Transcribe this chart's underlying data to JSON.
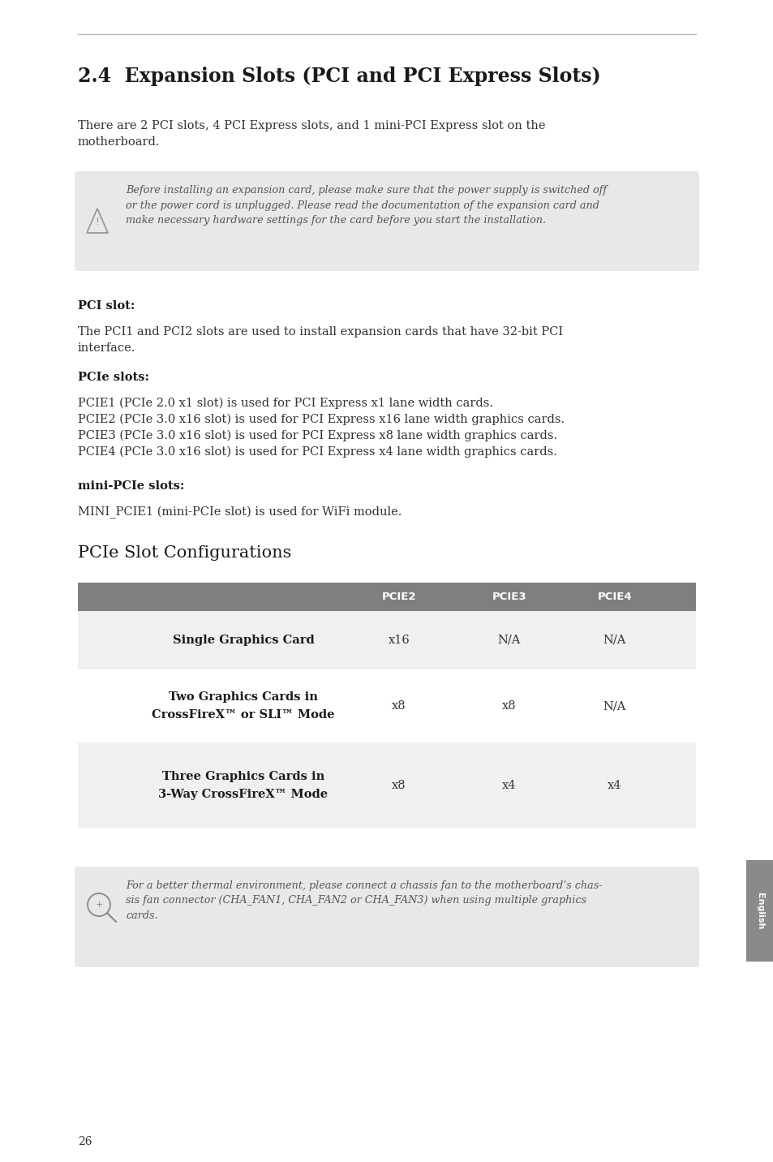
{
  "page_bg": "#ffffff",
  "top_line_color": "#bbbbbb",
  "title": "2.4  Expansion Slots (PCI and PCI Express Slots)",
  "title_fontsize": 17,
  "title_color": "#1a1a1a",
  "intro_text": "There are 2 PCI slots, 4 PCI Express slots, and 1 mini-PCI Express slot on the\nmotherboard.",
  "intro_fontsize": 10.5,
  "warning_box_color": "#e8e8e8",
  "warning_text": "Before installing an expansion card, please make sure that the power supply is switched off\nor the power cord is unplugged. Please read the documentation of the expansion card and\nmake necessary hardware settings for the card before you start the installation.",
  "warning_fontsize": 9.2,
  "pci_slot_label": "PCI slot:",
  "pci_slot_text": "The PCI1 and PCI2 slots are used to install expansion cards that have 32-bit PCI\ninterface.",
  "pcie_slots_label": "PCIe slots:",
  "pcie_lines": [
    "PCIE1 (PCIe 2.0 x1 slot) is used for PCI Express x1 lane width cards.",
    "PCIE2 (PCIe 3.0 x16 slot) is used for PCI Express x16 lane width graphics cards.",
    "PCIE3 (PCIe 3.0 x16 slot) is used for PCI Express x8 lane width graphics cards.",
    "PCIE4 (PCIe 3.0 x16 slot) is used for PCI Express x4 lane width graphics cards."
  ],
  "mini_pcie_label": "mini-PCIe slots:",
  "mini_pcie_text": "MINI_PCIE1 (mini-PCIe slot) is used for WiFi module.",
  "section2_title": "PCIe Slot Configurations",
  "section2_title_fontsize": 15,
  "table_header_bg": "#7f7f7f",
  "table_header_text_color": "#ffffff",
  "table_row1_bg": "#f0f0f0",
  "table_row2_bg": "#ffffff",
  "table_row3_bg": "#f0f0f0",
  "col_header_labels": [
    "PCIE2",
    "PCIE3",
    "PCIE4"
  ],
  "row1_label": "Single Graphics Card",
  "row1_vals": [
    "x16",
    "N/A",
    "N/A"
  ],
  "row2_label_line1": "Two Graphics Cards in",
  "row2_label_line2": "CrossFireX™ or SLI™ Mode",
  "row2_vals": [
    "x8",
    "x8",
    "N/A"
  ],
  "row3_label_line1": "Three Graphics Cards in",
  "row3_label_line2": "3-Way CrossFireX™ Mode",
  "row3_vals": [
    "x8",
    "x4",
    "x4"
  ],
  "note_box_color": "#e8e8e8",
  "note_text": "For a better thermal environment, please connect a chassis fan to the motherboard’s chas-\nsis fan connector (CHA_FAN1, CHA_FAN2 or CHA_FAN3) when using multiple graphics\ncards.",
  "note_fontsize": 9.2,
  "page_num": "26",
  "english_tab_color": "#8a8a8a",
  "body_fontsize": 10.5,
  "body_color": "#333333",
  "label_color": "#1a1a1a"
}
